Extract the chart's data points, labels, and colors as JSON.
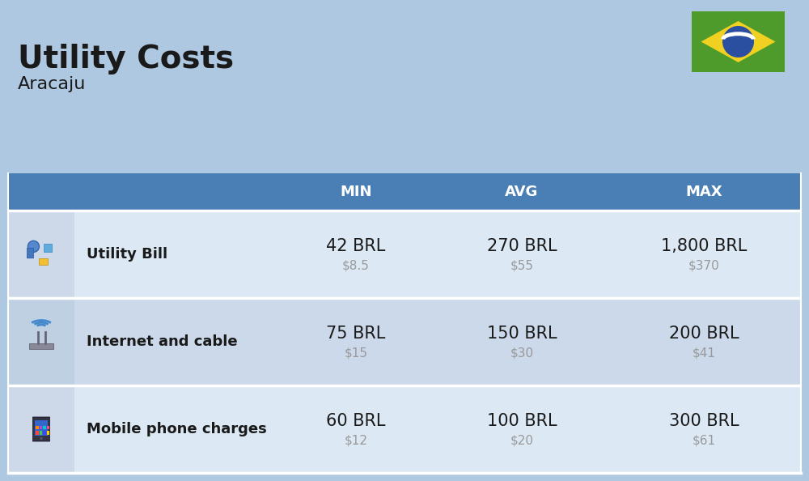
{
  "title": "Utility Costs",
  "subtitle": "Aracaju",
  "background_color": "#adc8e0",
  "header_bg_color": "#4a7fb5",
  "header_text_color": "#ffffff",
  "row_bg_even": "#dce9f5",
  "row_bg_odd": "#ccd9ea",
  "icon_col_bg_even": "#cdd9e8",
  "icon_col_bg_odd": "#bed0e2",
  "col_headers": [
    "MIN",
    "AVG",
    "MAX"
  ],
  "rows": [
    {
      "label": "Utility Bill",
      "min_brl": "42 BRL",
      "min_usd": "$8.5",
      "avg_brl": "270 BRL",
      "avg_usd": "$55",
      "max_brl": "1,800 BRL",
      "max_usd": "$370"
    },
    {
      "label": "Internet and cable",
      "min_brl": "75 BRL",
      "min_usd": "$15",
      "avg_brl": "150 BRL",
      "avg_usd": "$30",
      "max_brl": "200 BRL",
      "max_usd": "$41"
    },
    {
      "label": "Mobile phone charges",
      "min_brl": "60 BRL",
      "min_usd": "$12",
      "avg_brl": "100 BRL",
      "avg_usd": "$20",
      "max_brl": "300 BRL",
      "max_usd": "$61"
    }
  ],
  "label_fontsize": 13,
  "value_fontsize": 15,
  "usd_fontsize": 11,
  "header_fontsize": 13,
  "title_fontsize": 28,
  "subtitle_fontsize": 16,
  "flag_green": "#4e9a2a",
  "flag_yellow": "#f0d020",
  "flag_blue": "#2a4ea0",
  "flag_white": "#ffffff"
}
